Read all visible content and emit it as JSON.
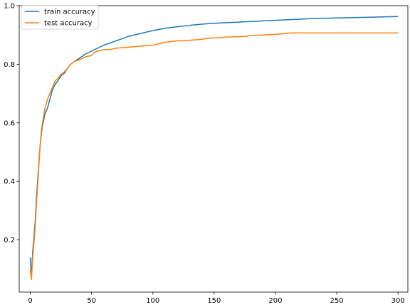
{
  "chart_data": {
    "type": "line",
    "xlim": [
      -9,
      308
    ],
    "ylim": [
      0.022,
      1.0
    ],
    "grid": false,
    "legend_position": "top-left",
    "x_ticks": [
      0,
      50,
      100,
      150,
      200,
      250,
      300
    ],
    "y_ticks": [
      0.2,
      0.4,
      0.6,
      0.8,
      1.0
    ],
    "x_tick_labels": [
      "0",
      "50",
      "100",
      "150",
      "200",
      "250",
      "300"
    ],
    "y_tick_labels": [
      "0.2",
      "0.4",
      "0.6",
      "0.8",
      "1.0"
    ],
    "series": [
      {
        "name": "train accuracy",
        "color": "#1f77b4",
        "x": [
          0,
          1,
          2,
          3,
          4,
          5,
          6,
          7,
          8,
          9,
          10,
          12,
          14,
          16,
          18,
          20,
          22,
          25,
          28,
          30,
          33,
          36,
          40,
          45,
          50,
          55,
          60,
          70,
          80,
          90,
          100,
          110,
          120,
          130,
          140,
          150,
          160,
          170,
          180,
          190,
          200,
          210,
          220,
          230,
          240,
          250,
          260,
          270,
          280,
          290,
          300
        ],
        "y": [
          0.14,
          0.08,
          0.16,
          0.21,
          0.26,
          0.34,
          0.4,
          0.46,
          0.52,
          0.56,
          0.59,
          0.63,
          0.65,
          0.68,
          0.71,
          0.73,
          0.74,
          0.76,
          0.77,
          0.785,
          0.8,
          0.81,
          0.82,
          0.835,
          0.845,
          0.855,
          0.865,
          0.88,
          0.895,
          0.905,
          0.915,
          0.923,
          0.928,
          0.933,
          0.937,
          0.94,
          0.942,
          0.944,
          0.946,
          0.948,
          0.95,
          0.952,
          0.954,
          0.956,
          0.957,
          0.958,
          0.959,
          0.96,
          0.961,
          0.962,
          0.963
        ]
      },
      {
        "name": "test accuracy",
        "color": "#ff7f0e",
        "x": [
          0,
          1,
          2,
          3,
          4,
          5,
          6,
          7,
          8,
          9,
          10,
          12,
          14,
          16,
          18,
          20,
          22,
          25,
          28,
          30,
          33,
          36,
          40,
          45,
          50,
          52,
          55,
          60,
          65,
          70,
          80,
          90,
          100,
          105,
          110,
          120,
          130,
          140,
          145,
          150,
          160,
          175,
          180,
          190,
          200,
          210,
          212,
          220,
          250,
          300
        ],
        "y": [
          0.1,
          0.065,
          0.14,
          0.19,
          0.24,
          0.32,
          0.38,
          0.45,
          0.52,
          0.57,
          0.6,
          0.65,
          0.68,
          0.7,
          0.72,
          0.74,
          0.75,
          0.765,
          0.775,
          0.785,
          0.8,
          0.81,
          0.815,
          0.825,
          0.83,
          0.84,
          0.845,
          0.85,
          0.85,
          0.855,
          0.858,
          0.862,
          0.865,
          0.87,
          0.875,
          0.88,
          0.882,
          0.885,
          0.889,
          0.89,
          0.893,
          0.895,
          0.898,
          0.9,
          0.902,
          0.905,
          0.907,
          0.907,
          0.907,
          0.907
        ]
      }
    ]
  }
}
